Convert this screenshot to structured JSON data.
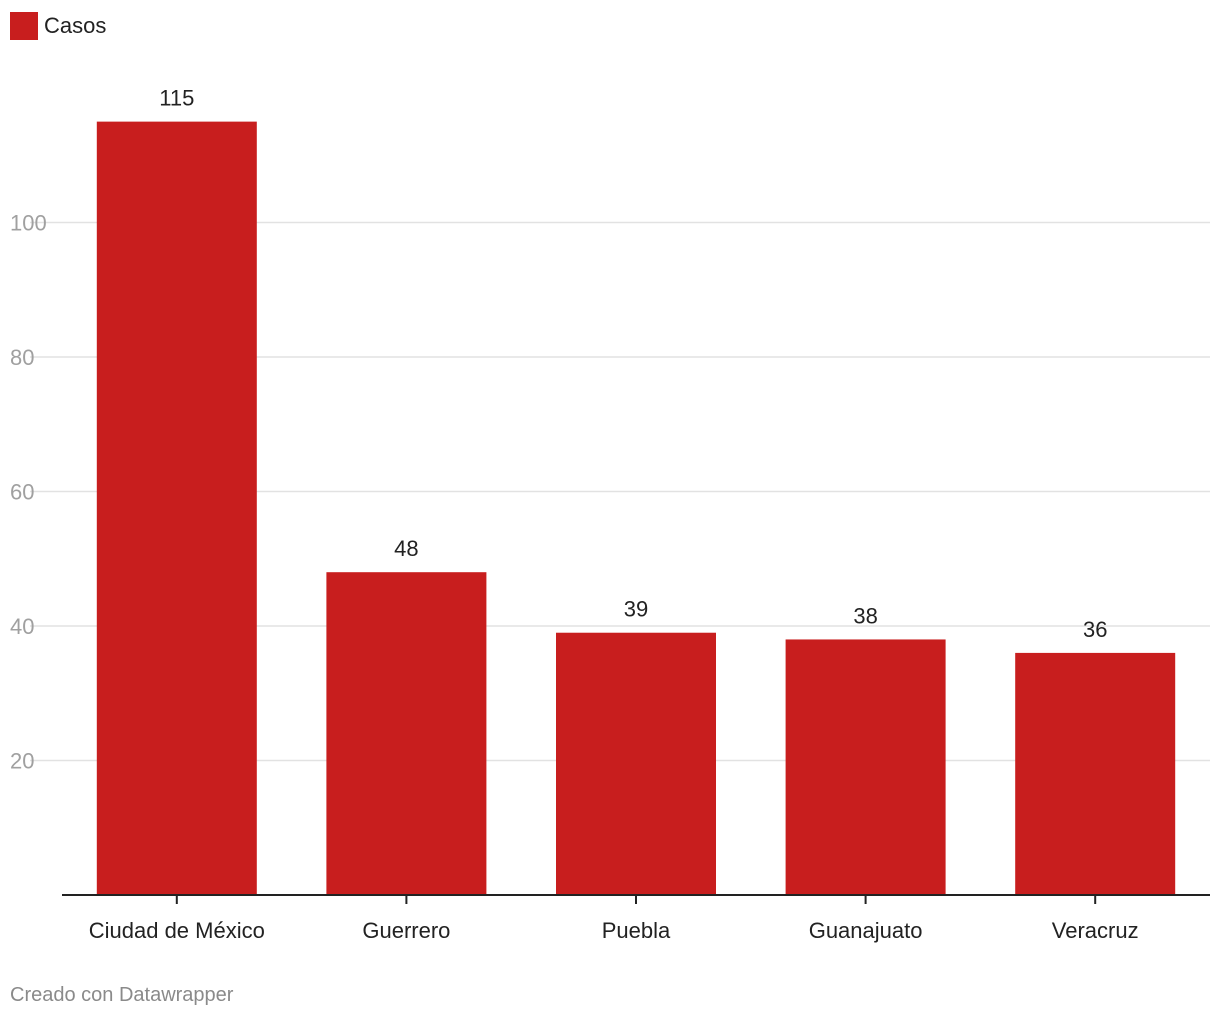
{
  "chart_data": {
    "type": "bar",
    "categories": [
      "Ciudad de México",
      "Guerrero",
      "Puebla",
      "Guanajuato",
      "Veracruz"
    ],
    "series": [
      {
        "name": "Casos",
        "values": [
          115,
          48,
          39,
          38,
          36
        ],
        "color": "#c81e1e"
      }
    ],
    "data_labels": [
      "115",
      "48",
      "39",
      "38",
      "36"
    ],
    "y_ticks": [
      20,
      40,
      60,
      80,
      100
    ],
    "y_tick_labels": [
      "20",
      "40",
      "60",
      "80",
      "100"
    ],
    "ylim": [
      0,
      115
    ],
    "grid": true,
    "legend_position": "top-left"
  },
  "legend": {
    "label": "Casos",
    "color": "#c81e1e"
  },
  "footer": {
    "credit": "Creado con Datawrapper"
  }
}
